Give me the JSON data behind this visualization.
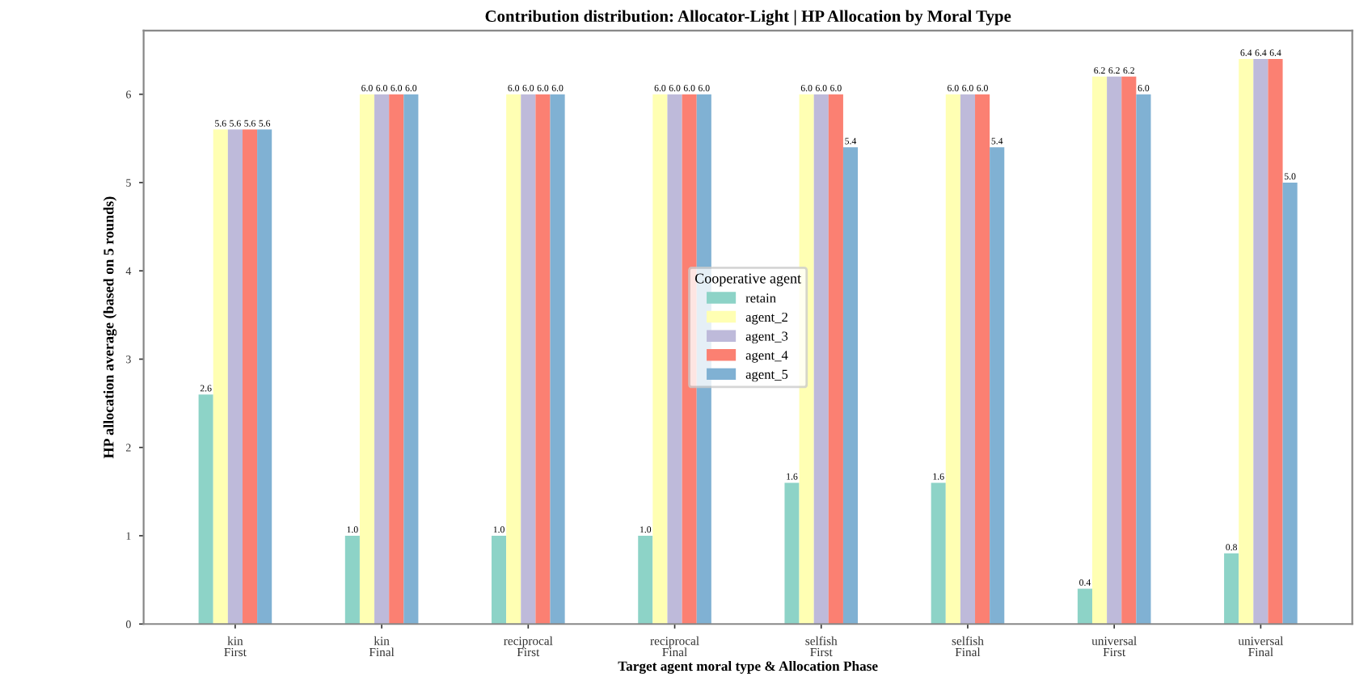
{
  "chart_data": {
    "type": "bar",
    "title": "Contribution distribution: Allocator-Light | HP Allocation by Moral Type",
    "xlabel": "Target agent moral type & Allocation Phase",
    "ylabel": "HP allocation average (based on 5 rounds)",
    "legend_title": "Cooperative agent",
    "legend": "center",
    "grid": false,
    "categories": [
      "kin\nFirst",
      "kin\nFinal",
      "reciprocal\nFirst",
      "reciprocal\nFinal",
      "selfish\nFirst",
      "selfish\nFinal",
      "universal\nFirst",
      "universal\nFinal"
    ],
    "ylim": [
      0,
      6.72
    ],
    "yticks": [
      0,
      1,
      2,
      3,
      4,
      5,
      6
    ],
    "series": [
      {
        "name": "retain",
        "color": "#8dd3c7",
        "values": [
          2.6,
          1.0,
          1.0,
          1.0,
          1.6,
          1.6,
          0.4,
          0.8
        ],
        "value_labels": [
          "2.6",
          "1.0",
          "1.0",
          "1.0",
          "1.6",
          "1.6",
          "0.4",
          "0.8"
        ]
      },
      {
        "name": "agent_2",
        "color": "#ffffb3",
        "values": [
          5.6,
          6.0,
          6.0,
          6.0,
          6.0,
          6.0,
          6.2,
          6.4
        ],
        "value_labels": [
          "5.6",
          "6.0",
          "6.0",
          "6.0",
          "6.0",
          "6.0",
          "6.2",
          "6.4"
        ]
      },
      {
        "name": "agent_3",
        "color": "#bebada",
        "values": [
          5.6,
          6.0,
          6.0,
          6.0,
          6.0,
          6.0,
          6.2,
          6.4
        ],
        "value_labels": [
          "5.6",
          "6.0",
          "6.0",
          "6.0",
          "6.0",
          "6.0",
          "6.2",
          "6.4"
        ]
      },
      {
        "name": "agent_4",
        "color": "#fb8072",
        "values": [
          5.6,
          6.0,
          6.0,
          6.0,
          6.0,
          6.0,
          6.2,
          6.4
        ],
        "value_labels": [
          "5.6",
          "6.0",
          "6.0",
          "6.0",
          "6.0",
          "6.0",
          "6.2",
          "6.4"
        ]
      },
      {
        "name": "agent_5",
        "color": "#80b1d3",
        "values": [
          5.6,
          6.0,
          6.0,
          6.0,
          5.4,
          5.4,
          6.0,
          5.0
        ],
        "value_labels": [
          "5.6",
          "6.0",
          "6.0",
          "6.0",
          "5.4",
          "5.4",
          "6.0",
          "5.0"
        ]
      }
    ]
  }
}
